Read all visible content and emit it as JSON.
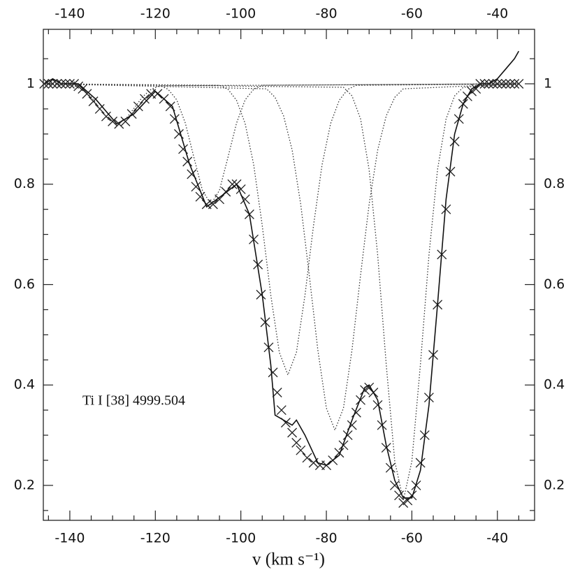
{
  "chart_data": {
    "type": "line",
    "xlabel": "v (km s⁻¹)",
    "annotation": "Ti I [38] 4999.504",
    "xlim": [
      -146.2,
      -31.3
    ],
    "ylim": [
      0.1304,
      1.1085
    ],
    "xticks": [
      -140,
      -120,
      -100,
      -80,
      -60,
      -40
    ],
    "yticks": [
      0.2,
      0.4,
      0.6,
      0.8,
      1
    ],
    "xminorticks": [
      -145,
      -135,
      -130,
      -125,
      -115,
      -110,
      -105,
      -95,
      -90,
      -85,
      -75,
      -70,
      -65,
      -55,
      -50,
      -45,
      -35
    ],
    "yminorticks": [
      0.15,
      0.25,
      0.3,
      0.35,
      0.45,
      0.5,
      0.55,
      0.65,
      0.7,
      0.75,
      0.85,
      0.9,
      0.95,
      1.05
    ],
    "mirror_axes": true,
    "series": [
      {
        "type": "scatter",
        "marker": "x",
        "color": "#222",
        "x": [
          -146,
          -145,
          -144,
          -143,
          -142,
          -141,
          -140,
          -139,
          -138,
          -137,
          -136,
          -134.5,
          -133,
          -131.5,
          -130,
          -128.5,
          -127,
          -125.5,
          -124,
          -122.5,
          -121,
          -119.5,
          -118,
          -116.5,
          -115.5,
          -114.5,
          -113.5,
          -112.5,
          -111.5,
          -110.5,
          -109.5,
          -108,
          -106.5,
          -105,
          -103.5,
          -102,
          -101,
          -100,
          -99,
          -98,
          -97,
          -96,
          -95.3,
          -94.3,
          -93.5,
          -92.5,
          -91.5,
          -90.5,
          -89.5,
          -88,
          -87,
          -86,
          -84.5,
          -83,
          -81.5,
          -80,
          -78.5,
          -77,
          -76,
          -75,
          -74,
          -73,
          -72,
          -71,
          -70,
          -69,
          -68,
          -67,
          -66,
          -65,
          -64,
          -63,
          -62,
          -61,
          -60,
          -59,
          -58,
          -57,
          -56,
          -55,
          -54,
          -53,
          -52,
          -51,
          -50,
          -49,
          -48,
          -47,
          -46,
          -45,
          -44,
          -43,
          -42,
          -41,
          -40,
          -39,
          -38,
          -37,
          -36,
          -35
        ],
        "values": [
          1,
          1,
          1,
          1,
          1,
          1,
          1,
          1,
          0.995,
          0.99,
          0.98,
          0.965,
          0.95,
          0.935,
          0.925,
          0.92,
          0.925,
          0.94,
          0.955,
          0.97,
          0.98,
          0.98,
          0.97,
          0.955,
          0.93,
          0.9,
          0.87,
          0.845,
          0.82,
          0.795,
          0.775,
          0.76,
          0.76,
          0.77,
          0.785,
          0.8,
          0.8,
          0.79,
          0.77,
          0.74,
          0.69,
          0.64,
          0.58,
          0.525,
          0.475,
          0.425,
          0.385,
          0.35,
          0.325,
          0.305,
          0.285,
          0.27,
          0.255,
          0.245,
          0.24,
          0.24,
          0.25,
          0.265,
          0.28,
          0.3,
          0.32,
          0.345,
          0.37,
          0.39,
          0.395,
          0.385,
          0.36,
          0.32,
          0.275,
          0.235,
          0.2,
          0.18,
          0.165,
          0.17,
          0.18,
          0.2,
          0.245,
          0.3,
          0.375,
          0.46,
          0.56,
          0.66,
          0.75,
          0.825,
          0.885,
          0.93,
          0.96,
          0.975,
          0.985,
          0.99,
          1,
          1,
          1,
          1,
          1,
          1,
          1,
          1,
          1,
          1
        ]
      },
      {
        "type": "line",
        "dash": "solid",
        "color": "#111",
        "x": [
          -146,
          -144,
          -142,
          -138,
          -134,
          -129,
          -125,
          -120,
          -116,
          -112,
          -108,
          -104,
          -101,
          -98,
          -95,
          -93,
          -92,
          -90,
          -88,
          -87,
          -85,
          -82,
          -80,
          -77,
          -74,
          -71,
          -70,
          -68,
          -66,
          -64,
          -62,
          -60,
          -58,
          -56,
          -54,
          -52,
          -50,
          -48,
          -46,
          -44,
          -42,
          -40,
          -38,
          -36,
          -35
        ],
        "values": [
          1,
          1.01,
          1,
          1,
          0.97,
          0.92,
          0.94,
          0.985,
          0.955,
          0.84,
          0.755,
          0.78,
          0.8,
          0.74,
          0.58,
          0.44,
          0.34,
          0.33,
          0.32,
          0.33,
          0.3,
          0.245,
          0.24,
          0.26,
          0.33,
          0.395,
          0.4,
          0.37,
          0.28,
          0.21,
          0.175,
          0.175,
          0.23,
          0.36,
          0.56,
          0.77,
          0.9,
          0.96,
          0.99,
          1,
          1,
          1.01,
          1.03,
          1.05,
          1.065
        ]
      },
      {
        "type": "line",
        "dash": "dotted",
        "color": "#333",
        "x": [
          -146,
          -139,
          -137,
          -135,
          -133,
          -131,
          -129,
          -127,
          -125,
          -123,
          -121,
          -119,
          -35
        ],
        "values": [
          1,
          0.996,
          0.989,
          0.974,
          0.951,
          0.929,
          0.92,
          0.929,
          0.951,
          0.974,
          0.989,
          0.996,
          1
        ]
      },
      {
        "type": "line",
        "dash": "dotted",
        "color": "#333",
        "x": [
          -146,
          -119,
          -117,
          -115,
          -113,
          -111,
          -109,
          -107,
          -105,
          -103,
          -101,
          -99,
          -97,
          -95,
          -35
        ],
        "values": [
          1,
          0.997,
          0.989,
          0.968,
          0.922,
          0.854,
          0.788,
          0.76,
          0.788,
          0.854,
          0.922,
          0.968,
          0.989,
          0.997,
          1
        ]
      },
      {
        "type": "line",
        "dash": "dotted",
        "color": "#333",
        "x": [
          -146,
          -105,
          -103,
          -101,
          -99,
          -97,
          -95,
          -93,
          -91,
          -89,
          -87,
          -85,
          -83,
          -81,
          -79,
          -77,
          -75,
          -73,
          -35
        ],
        "values": [
          1,
          0.997,
          0.989,
          0.967,
          0.921,
          0.839,
          0.718,
          0.579,
          0.465,
          0.42,
          0.465,
          0.579,
          0.718,
          0.839,
          0.921,
          0.967,
          0.989,
          0.997,
          1
        ]
      },
      {
        "type": "line",
        "dash": "dotted",
        "color": "#333",
        "x": [
          -146,
          -94,
          -92,
          -90,
          -88,
          -86,
          -84,
          -82,
          -80,
          -78,
          -76,
          -74,
          -72,
          -70,
          -68,
          -66,
          -64,
          -62,
          -35
        ],
        "values": [
          1,
          0.99,
          0.973,
          0.936,
          0.868,
          0.76,
          0.619,
          0.47,
          0.354,
          0.31,
          0.354,
          0.47,
          0.619,
          0.76,
          0.868,
          0.936,
          0.973,
          0.99,
          1
        ]
      },
      {
        "type": "line",
        "dash": "dotted",
        "color": "#333",
        "x": [
          -146,
          -76,
          -74,
          -72,
          -70,
          -68,
          -66,
          -64,
          -62,
          -60,
          -58,
          -56,
          -54,
          -52,
          -50,
          -48,
          -35
        ],
        "values": [
          1,
          0.993,
          0.976,
          0.93,
          0.829,
          0.659,
          0.441,
          0.248,
          0.17,
          0.248,
          0.441,
          0.659,
          0.829,
          0.93,
          0.976,
          0.993,
          1
        ]
      }
    ]
  }
}
